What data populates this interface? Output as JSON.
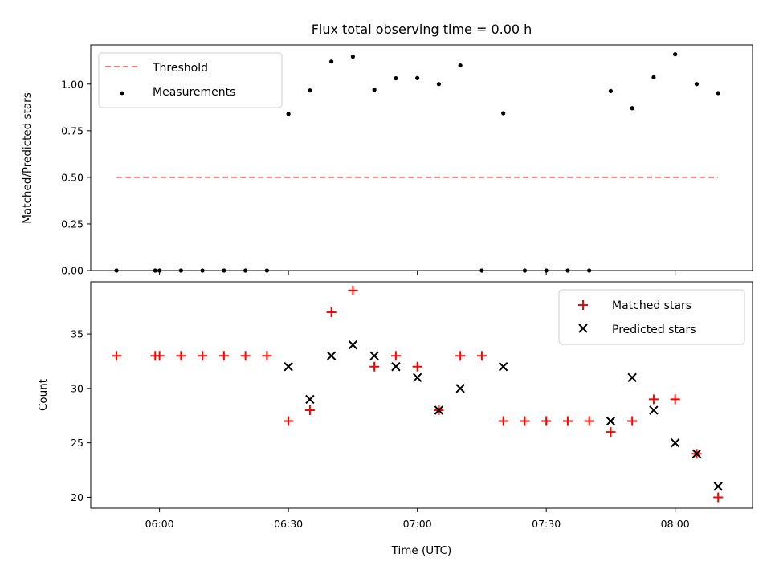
{
  "chart_data": [
    {
      "type": "scatter",
      "title": "Flux total observing time = 0.00 h",
      "xlabel": "",
      "ylabel": "Matched/Predicted stars",
      "xlim": [
        "05:44",
        "08:18"
      ],
      "ylim": [
        0,
        1.21
      ],
      "y_ticks": [
        "0.00",
        "0.25",
        "0.50",
        "0.75",
        "1.00"
      ],
      "y_tick_values": [
        0,
        0.25,
        0.5,
        0.75,
        1.0
      ],
      "legend": {
        "placement": "top-left",
        "entries": [
          "Threshold",
          "Measurements"
        ]
      },
      "threshold": {
        "name": "Threshold",
        "value": 0.5,
        "x_start": "05:50",
        "x_end": "08:10",
        "color": "#f08080"
      },
      "measurements": {
        "name": "Measurements",
        "color": "#000000",
        "points": [
          [
            "05:50",
            0.0
          ],
          [
            "05:59",
            0.0
          ],
          [
            "06:00",
            0.0
          ],
          [
            "06:05",
            0.0
          ],
          [
            "06:10",
            0.0
          ],
          [
            "06:15",
            0.0
          ],
          [
            "06:20",
            0.0
          ],
          [
            "06:25",
            0.0
          ],
          [
            "06:30",
            0.84
          ],
          [
            "06:35",
            0.966
          ],
          [
            "06:40",
            1.121
          ],
          [
            "06:45",
            1.147
          ],
          [
            "06:50",
            0.97
          ],
          [
            "06:55",
            1.031
          ],
          [
            "07:00",
            1.032
          ],
          [
            "07:05",
            1.0
          ],
          [
            "07:10",
            1.1
          ],
          [
            "07:15",
            0.0
          ],
          [
            "07:20",
            0.844
          ],
          [
            "07:25",
            0.0
          ],
          [
            "07:30",
            0.0
          ],
          [
            "07:35",
            0.0
          ],
          [
            "07:40",
            0.0
          ],
          [
            "07:45",
            0.963
          ],
          [
            "07:50",
            0.871
          ],
          [
            "07:55",
            1.036
          ],
          [
            "08:00",
            1.16
          ],
          [
            "08:05",
            1.0
          ],
          [
            "08:10",
            0.952
          ]
        ]
      }
    },
    {
      "type": "scatter",
      "title": "",
      "xlabel": "Time (UTC)",
      "ylabel": "Count",
      "xlim": [
        "05:44",
        "08:18"
      ],
      "ylim": [
        19,
        39.8
      ],
      "x_ticks": [
        "06:00",
        "06:30",
        "07:00",
        "07:30",
        "08:00"
      ],
      "y_ticks": [
        "20",
        "25",
        "30",
        "35"
      ],
      "y_tick_values": [
        20,
        25,
        30,
        35
      ],
      "legend": {
        "placement": "top-right",
        "entries": [
          "Matched stars",
          "Predicted stars"
        ]
      },
      "series": [
        {
          "name": "Matched stars",
          "marker": "plus",
          "color": "#ff0000",
          "points": [
            [
              "05:50",
              33
            ],
            [
              "05:59",
              33
            ],
            [
              "06:00",
              33
            ],
            [
              "06:05",
              33
            ],
            [
              "06:10",
              33
            ],
            [
              "06:15",
              33
            ],
            [
              "06:20",
              33
            ],
            [
              "06:25",
              33
            ],
            [
              "06:30",
              27
            ],
            [
              "06:35",
              28
            ],
            [
              "06:40",
              37
            ],
            [
              "06:45",
              39
            ],
            [
              "06:50",
              32
            ],
            [
              "06:55",
              33
            ],
            [
              "07:00",
              32
            ],
            [
              "07:05",
              28
            ],
            [
              "07:10",
              33
            ],
            [
              "07:15",
              33
            ],
            [
              "07:20",
              27
            ],
            [
              "07:25",
              27
            ],
            [
              "07:30",
              27
            ],
            [
              "07:35",
              27
            ],
            [
              "07:40",
              27
            ],
            [
              "07:45",
              26
            ],
            [
              "07:50",
              27
            ],
            [
              "07:55",
              29
            ],
            [
              "08:00",
              29
            ],
            [
              "08:05",
              24
            ],
            [
              "08:10",
              20
            ]
          ]
        },
        {
          "name": "Predicted stars",
          "marker": "x",
          "color": "#000000",
          "points": [
            [
              "06:30",
              32
            ],
            [
              "06:35",
              29
            ],
            [
              "06:40",
              33
            ],
            [
              "06:45",
              34
            ],
            [
              "06:50",
              33
            ],
            [
              "06:55",
              32
            ],
            [
              "07:00",
              31
            ],
            [
              "07:05",
              28
            ],
            [
              "07:10",
              30
            ],
            [
              "07:20",
              32
            ],
            [
              "07:45",
              27
            ],
            [
              "07:50",
              31
            ],
            [
              "07:55",
              28
            ],
            [
              "08:00",
              25
            ],
            [
              "08:05",
              24
            ],
            [
              "08:10",
              21
            ]
          ]
        }
      ]
    }
  ]
}
